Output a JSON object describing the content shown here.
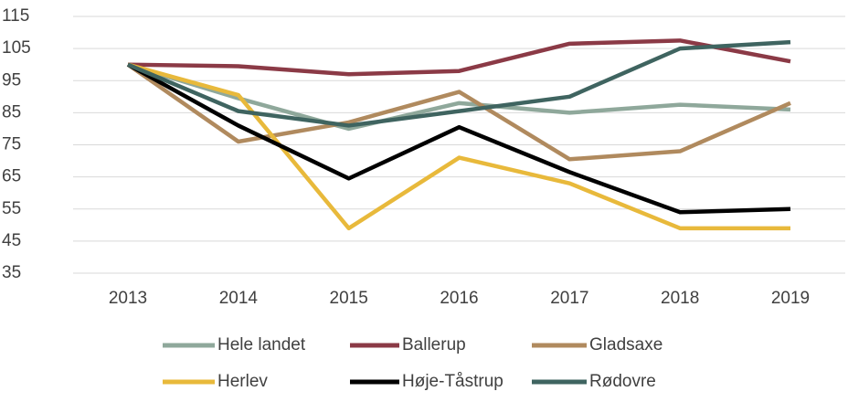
{
  "chart_data": {
    "type": "line",
    "categories": [
      "2013",
      "2014",
      "2015",
      "2016",
      "2017",
      "2018",
      "2019"
    ],
    "series": [
      {
        "name": "Hele landet",
        "color": "#8fa89b",
        "values": [
          100,
          89.5,
          80,
          88,
          85,
          87.5,
          86
        ]
      },
      {
        "name": "Ballerup",
        "color": "#8b3a46",
        "values": [
          100,
          99.5,
          97,
          98,
          106.5,
          107.5,
          101
        ]
      },
      {
        "name": "Gladsaxe",
        "color": "#b08a5e",
        "values": [
          100,
          76,
          82,
          91.5,
          70.5,
          73,
          88
        ]
      },
      {
        "name": "Herlev",
        "color": "#e8b93b",
        "values": [
          100,
          90.5,
          49,
          71,
          63,
          49,
          49
        ]
      },
      {
        "name": "Høje-Tåstrup",
        "color": "#000000",
        "values": [
          100,
          81,
          64.5,
          80.5,
          66.5,
          54,
          55
        ]
      },
      {
        "name": "Rødovre",
        "color": "#3f6460",
        "values": [
          100,
          85.5,
          81,
          85.5,
          90,
          105,
          107
        ]
      }
    ],
    "ylim": [
      35,
      115
    ],
    "yticks": [
      35,
      45,
      55,
      65,
      75,
      85,
      95,
      105,
      115
    ],
    "grid": true,
    "legend": "bottom"
  }
}
